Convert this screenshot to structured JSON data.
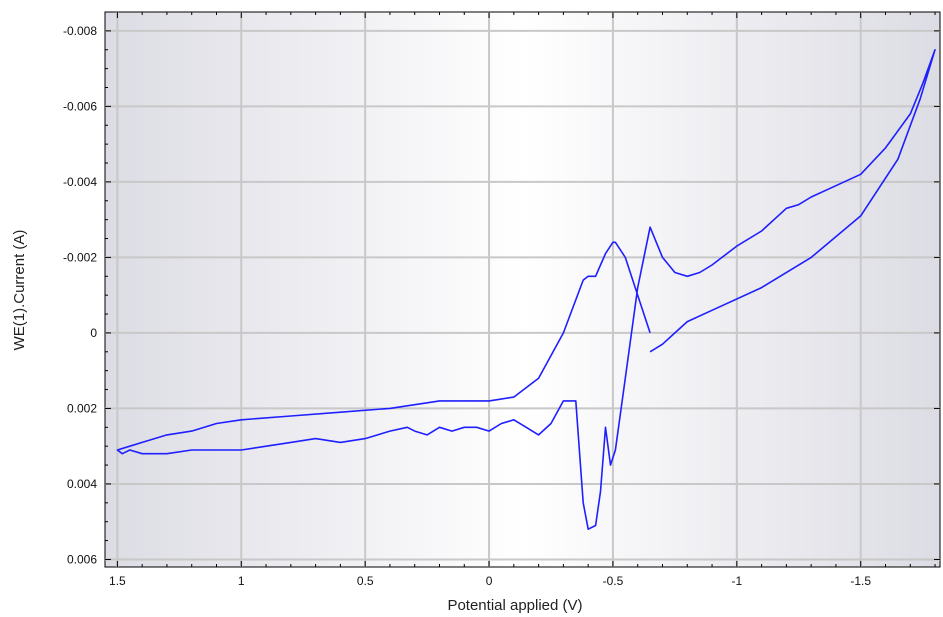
{
  "chart_data": {
    "type": "line",
    "xlabel": "Potential applied (V)",
    "ylabel": "WE(1).Current (A)",
    "xlim": [
      1.55,
      -1.82
    ],
    "ylim": [
      0.0062,
      -0.0085
    ],
    "x_axis_reversed": true,
    "y_axis_reversed": true,
    "grid": true,
    "x_ticks": [
      1.5,
      1,
      0.5,
      0,
      -0.5,
      -1,
      -1.5
    ],
    "x_tick_labels": [
      "1.5",
      "1",
      "0.5",
      "0",
      "-0.5",
      "-1",
      "-1.5"
    ],
    "y_ticks": [
      -0.008,
      -0.006,
      -0.004,
      -0.002,
      0,
      0.002,
      0.004,
      0.006
    ],
    "y_tick_labels": [
      "-0.008",
      "-0.006",
      "-0.004",
      "-0.002",
      "0",
      "0.002",
      "0.004",
      "0.006"
    ],
    "series": [
      {
        "color": "#1f1fff",
        "x": [
          -0.65,
          -0.6,
          -0.55,
          -0.51,
          -0.5,
          -0.47,
          -0.45,
          -0.43,
          -0.4,
          -0.38,
          -0.3,
          -0.2,
          -0.1,
          0.0,
          0.1,
          0.2,
          0.3,
          0.4,
          0.6,
          0.8,
          1.0,
          1.1,
          1.2,
          1.3,
          1.4,
          1.45,
          1.5,
          1.48,
          1.45,
          1.4,
          1.3,
          1.2,
          1.1,
          1.0,
          0.9,
          0.8,
          0.7,
          0.6,
          0.5,
          0.45,
          0.4,
          0.33,
          0.3,
          0.25,
          0.2,
          0.15,
          0.1,
          0.05,
          0.0,
          -0.05,
          -0.1,
          -0.15,
          -0.2,
          -0.25,
          -0.3,
          -0.35,
          -0.38,
          -0.4,
          -0.43,
          -0.45,
          -0.47,
          -0.49,
          -0.51,
          -0.55,
          -0.6,
          -0.65,
          -0.7,
          -0.75,
          -0.8,
          -0.85,
          -0.9,
          -1.0,
          -1.1,
          -1.2,
          -1.25,
          -1.3,
          -1.4,
          -1.5,
          -1.6,
          -1.7,
          -1.75,
          -1.8,
          -1.74,
          -1.65,
          -1.5,
          -1.3,
          -1.1,
          -0.9,
          -0.8,
          -0.75,
          -0.7,
          -0.65
        ],
        "values": [
          0.0,
          -0.001,
          -0.002,
          -0.0024,
          -0.0024,
          -0.0021,
          -0.0018,
          -0.0015,
          -0.0015,
          -0.0014,
          0.0,
          0.0012,
          0.0017,
          0.0018,
          0.0018,
          0.0018,
          0.0019,
          0.002,
          0.0021,
          0.0022,
          0.0023,
          0.0024,
          0.0026,
          0.0027,
          0.0029,
          0.003,
          0.0031,
          0.0032,
          0.0031,
          0.0032,
          0.0032,
          0.0031,
          0.0031,
          0.0031,
          0.003,
          0.0029,
          0.0028,
          0.0029,
          0.0028,
          0.0027,
          0.0026,
          0.0025,
          0.0026,
          0.0027,
          0.0025,
          0.0026,
          0.0025,
          0.0025,
          0.0026,
          0.0024,
          0.0023,
          0.0025,
          0.0027,
          0.0024,
          0.0018,
          0.0018,
          0.0045,
          0.0052,
          0.0051,
          0.0042,
          0.0025,
          0.0035,
          0.0031,
          0.0012,
          -0.0012,
          -0.0028,
          -0.002,
          -0.0016,
          -0.0015,
          -0.0016,
          -0.0018,
          -0.0023,
          -0.0027,
          -0.0033,
          -0.0034,
          -0.0036,
          -0.0039,
          -0.0042,
          -0.0049,
          -0.0058,
          -0.0066,
          -0.0075,
          -0.0062,
          -0.0046,
          -0.0031,
          -0.002,
          -0.0012,
          -0.0006,
          -0.0003,
          0.0,
          0.0003,
          0.0005
        ]
      }
    ]
  }
}
